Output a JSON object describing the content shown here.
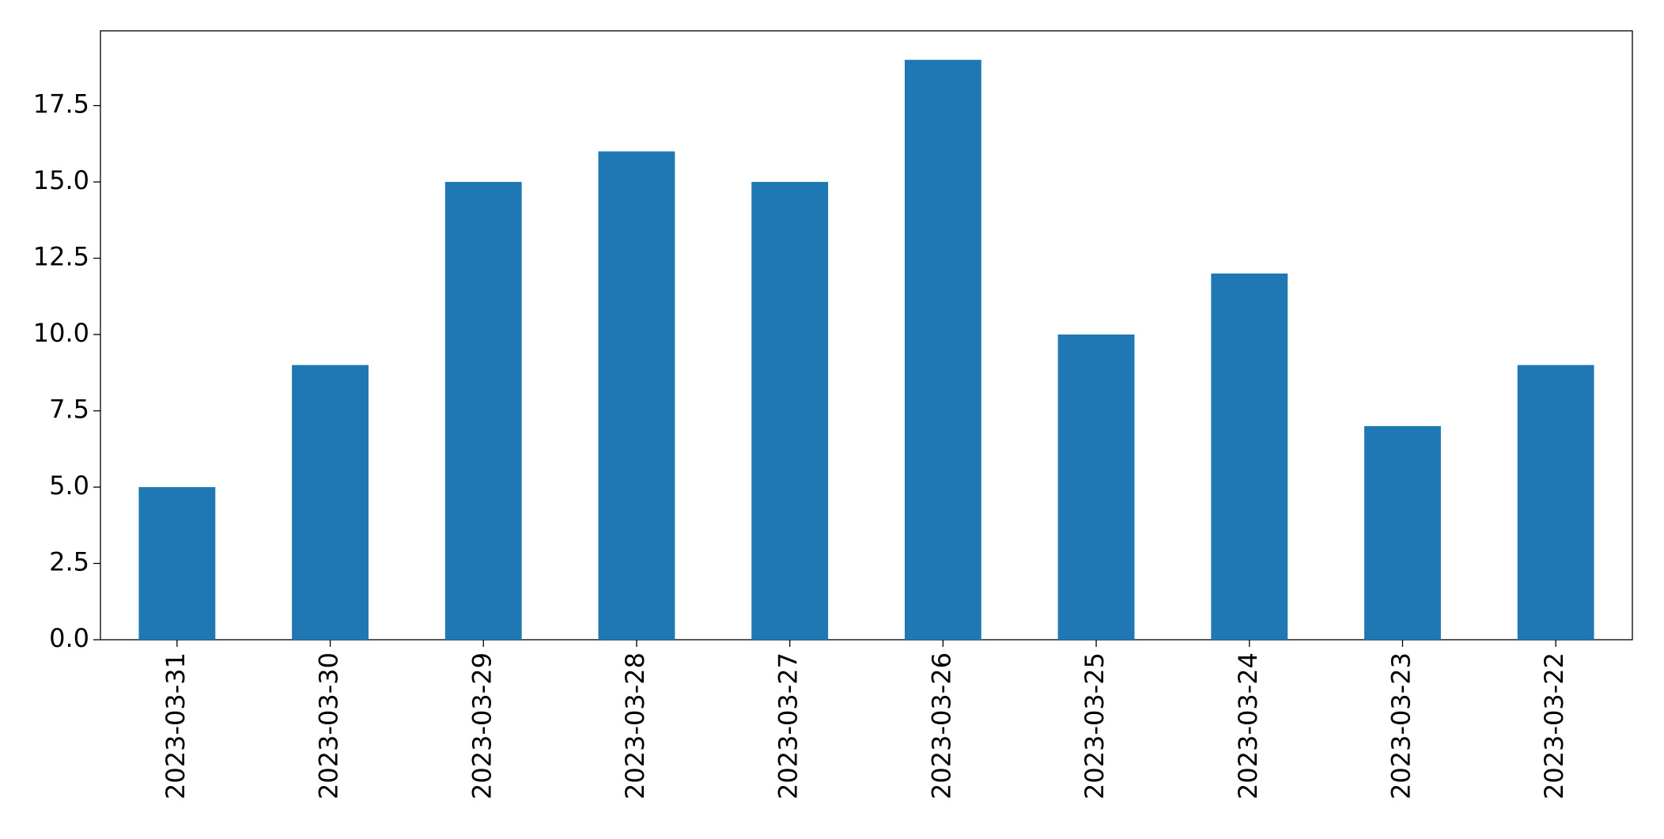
{
  "chart_data": {
    "type": "bar",
    "categories": [
      "2023-03-31",
      "2023-03-30",
      "2023-03-29",
      "2023-03-28",
      "2023-03-27",
      "2023-03-26",
      "2023-03-25",
      "2023-03-24",
      "2023-03-23",
      "2023-03-22"
    ],
    "values": [
      5,
      9,
      15,
      16,
      15,
      19,
      10,
      12,
      7,
      9
    ],
    "color": "#1f77b4",
    "ylim": [
      0,
      19.95
    ],
    "yticks": [
      {
        "value": 0,
        "label": "0.0"
      },
      2.5,
      {
        "value": 5,
        "label": "5.0"
      },
      7.5,
      {
        "value": 10,
        "label": "10.0"
      },
      12.5,
      {
        "value": 15,
        "label": "15.0"
      },
      17.5
    ],
    "grid": false
  }
}
